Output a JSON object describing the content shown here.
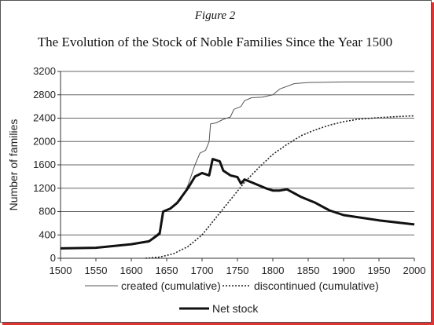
{
  "figure_label": "Figure 2",
  "chart_data": {
    "type": "line",
    "title": "The Evolution of the Stock of Noble Families Since the Year 1500",
    "xlabel": "",
    "ylabel": "Number of families",
    "xlim": [
      1500,
      2000
    ],
    "ylim": [
      0,
      3200
    ],
    "xticks": [
      "1500",
      "1550",
      "1600",
      "1650",
      "1700",
      "1750",
      "1800",
      "1850",
      "1900",
      "1950",
      "2000"
    ],
    "yticks": [
      "0",
      "400",
      "800",
      "1200",
      "1600",
      "2000",
      "2400",
      "2800",
      "3200"
    ],
    "grid": "horizontal",
    "legend": "bottom",
    "series": [
      {
        "name": "created (cumulative)",
        "style": "thin-solid",
        "color": "#555555",
        "points": [
          [
            1500,
            170
          ],
          [
            1550,
            180
          ],
          [
            1600,
            240
          ],
          [
            1625,
            300
          ],
          [
            1640,
            450
          ],
          [
            1645,
            800
          ],
          [
            1655,
            850
          ],
          [
            1670,
            1000
          ],
          [
            1680,
            1250
          ],
          [
            1690,
            1600
          ],
          [
            1697,
            1800
          ],
          [
            1705,
            1850
          ],
          [
            1710,
            2000
          ],
          [
            1712,
            2300
          ],
          [
            1720,
            2320
          ],
          [
            1730,
            2380
          ],
          [
            1740,
            2420
          ],
          [
            1745,
            2550
          ],
          [
            1755,
            2600
          ],
          [
            1760,
            2700
          ],
          [
            1770,
            2750
          ],
          [
            1785,
            2760
          ],
          [
            1800,
            2800
          ],
          [
            1810,
            2900
          ],
          [
            1830,
            2990
          ],
          [
            1850,
            3010
          ],
          [
            1900,
            3020
          ],
          [
            2000,
            3020
          ]
        ]
      },
      {
        "name": "discontinued (cumulative)",
        "style": "dotted",
        "color": "#222222",
        "points": [
          [
            1620,
            0
          ],
          [
            1640,
            20
          ],
          [
            1660,
            80
          ],
          [
            1680,
            200
          ],
          [
            1700,
            400
          ],
          [
            1720,
            700
          ],
          [
            1740,
            1000
          ],
          [
            1760,
            1300
          ],
          [
            1780,
            1550
          ],
          [
            1800,
            1780
          ],
          [
            1820,
            1950
          ],
          [
            1840,
            2100
          ],
          [
            1860,
            2200
          ],
          [
            1880,
            2280
          ],
          [
            1900,
            2340
          ],
          [
            1920,
            2380
          ],
          [
            1950,
            2410
          ],
          [
            1980,
            2430
          ],
          [
            2000,
            2440
          ]
        ]
      },
      {
        "name": "Net stock",
        "style": "thick-solid",
        "color": "#111111",
        "points": [
          [
            1500,
            170
          ],
          [
            1550,
            180
          ],
          [
            1600,
            240
          ],
          [
            1625,
            290
          ],
          [
            1640,
            420
          ],
          [
            1645,
            800
          ],
          [
            1655,
            850
          ],
          [
            1665,
            950
          ],
          [
            1680,
            1200
          ],
          [
            1690,
            1400
          ],
          [
            1700,
            1460
          ],
          [
            1710,
            1420
          ],
          [
            1715,
            1700
          ],
          [
            1725,
            1660
          ],
          [
            1730,
            1500
          ],
          [
            1740,
            1420
          ],
          [
            1750,
            1390
          ],
          [
            1755,
            1280
          ],
          [
            1760,
            1350
          ],
          [
            1770,
            1300
          ],
          [
            1790,
            1200
          ],
          [
            1800,
            1160
          ],
          [
            1810,
            1160
          ],
          [
            1820,
            1180
          ],
          [
            1840,
            1050
          ],
          [
            1860,
            950
          ],
          [
            1880,
            820
          ],
          [
            1900,
            740
          ],
          [
            1950,
            650
          ],
          [
            2000,
            580
          ]
        ]
      }
    ]
  }
}
